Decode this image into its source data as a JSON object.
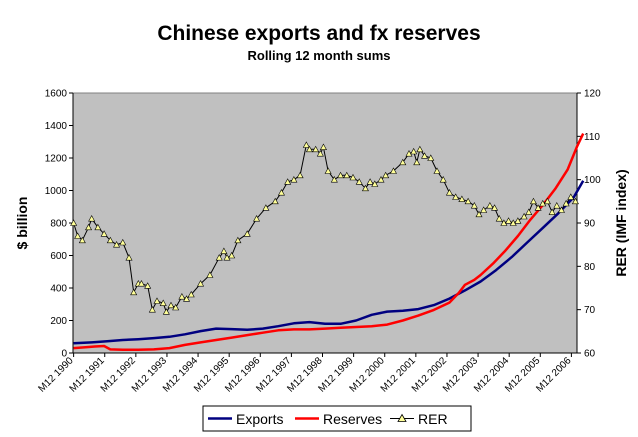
{
  "chart_data": {
    "type": "line",
    "title": "Chinese exports and fx reserves",
    "subtitle": "Rolling 12 month sums",
    "ylabel_left": "$ billion",
    "ylabel_right": "RER (IMF index)",
    "ylim_left": [
      0,
      1600
    ],
    "ylim_right": [
      60,
      120
    ],
    "yticks_left": [
      "0",
      "200",
      "400",
      "600",
      "800",
      "1000",
      "1200",
      "1400",
      "1600"
    ],
    "yticks_right": [
      "60",
      "70",
      "80",
      "90",
      "100",
      "110",
      "120"
    ],
    "xlim": [
      1990.9,
      2007.1
    ],
    "xticks": [
      {
        "label": "M12 1990",
        "x": 1990.92
      },
      {
        "label": "M12 1991",
        "x": 1991.92
      },
      {
        "label": "M12 1992",
        "x": 1992.92
      },
      {
        "label": "M12 1993",
        "x": 1993.92
      },
      {
        "label": "M12 1994",
        "x": 1994.92
      },
      {
        "label": "M12 1995",
        "x": 1995.92
      },
      {
        "label": "M12 1996",
        "x": 1996.92
      },
      {
        "label": "M12 1997",
        "x": 1997.92
      },
      {
        "label": "M12 1998",
        "x": 1998.92
      },
      {
        "label": "M12 1999",
        "x": 1999.92
      },
      {
        "label": "M12 2000",
        "x": 2000.92
      },
      {
        "label": "M12 2001",
        "x": 2001.92
      },
      {
        "label": "M12 2002",
        "x": 2002.92
      },
      {
        "label": "M12 2003",
        "x": 2003.92
      },
      {
        "label": "M12 2004",
        "x": 2004.92
      },
      {
        "label": "M12 2005",
        "x": 2005.92
      },
      {
        "label": "M12 2006",
        "x": 2006.92
      }
    ],
    "grid": false,
    "background": "#c0c0c0",
    "legend_position": "bottom",
    "series": [
      {
        "name": "Exports",
        "axis": "left",
        "color": "#000080",
        "marker": false,
        "points": [
          [
            1990.92,
            60
          ],
          [
            1991.5,
            65
          ],
          [
            1992.0,
            72
          ],
          [
            1992.5,
            80
          ],
          [
            1993.0,
            85
          ],
          [
            1993.5,
            92
          ],
          [
            1994.0,
            100
          ],
          [
            1994.5,
            115
          ],
          [
            1995.0,
            135
          ],
          [
            1995.5,
            150
          ],
          [
            1996.0,
            147
          ],
          [
            1996.5,
            143
          ],
          [
            1997.0,
            150
          ],
          [
            1997.5,
            165
          ],
          [
            1998.0,
            183
          ],
          [
            1998.5,
            190
          ],
          [
            1999.0,
            180
          ],
          [
            1999.5,
            180
          ],
          [
            2000.0,
            200
          ],
          [
            2000.5,
            235
          ],
          [
            2001.0,
            255
          ],
          [
            2001.5,
            260
          ],
          [
            2002.0,
            270
          ],
          [
            2002.5,
            295
          ],
          [
            2003.0,
            335
          ],
          [
            2003.5,
            385
          ],
          [
            2004.0,
            440
          ],
          [
            2004.5,
            510
          ],
          [
            2005.0,
            590
          ],
          [
            2005.5,
            680
          ],
          [
            2006.0,
            770
          ],
          [
            2006.5,
            860
          ],
          [
            2007.0,
            960
          ],
          [
            2007.3,
            1060
          ]
        ]
      },
      {
        "name": "Reserves",
        "axis": "left",
        "color": "#ff0000",
        "marker": false,
        "points": [
          [
            1990.92,
            30
          ],
          [
            1991.3,
            35
          ],
          [
            1991.6,
            40
          ],
          [
            1991.9,
            43
          ],
          [
            1992.1,
            22
          ],
          [
            1992.5,
            20
          ],
          [
            1993.0,
            20
          ],
          [
            1993.5,
            22
          ],
          [
            1994.0,
            30
          ],
          [
            1994.5,
            50
          ],
          [
            1995.0,
            65
          ],
          [
            1995.5,
            80
          ],
          [
            1996.0,
            95
          ],
          [
            1996.5,
            110
          ],
          [
            1997.0,
            125
          ],
          [
            1997.5,
            140
          ],
          [
            1998.0,
            145
          ],
          [
            1998.5,
            145
          ],
          [
            1999.0,
            150
          ],
          [
            1999.5,
            155
          ],
          [
            2000.0,
            160
          ],
          [
            2000.5,
            165
          ],
          [
            2001.0,
            175
          ],
          [
            2001.5,
            200
          ],
          [
            2002.0,
            230
          ],
          [
            2002.5,
            265
          ],
          [
            2003.0,
            310
          ],
          [
            2003.3,
            370
          ],
          [
            2003.5,
            420
          ],
          [
            2003.8,
            450
          ],
          [
            2004.0,
            480
          ],
          [
            2004.4,
            550
          ],
          [
            2004.8,
            630
          ],
          [
            2005.2,
            720
          ],
          [
            2005.6,
            820
          ],
          [
            2006.0,
            910
          ],
          [
            2006.4,
            1010
          ],
          [
            2006.8,
            1130
          ],
          [
            2007.1,
            1270
          ],
          [
            2007.3,
            1350
          ]
        ]
      },
      {
        "name": "RER",
        "axis": "right",
        "color": "#000000",
        "marker": true,
        "marker_fill": "#ffff99",
        "points": [
          [
            1990.92,
            90
          ],
          [
            1991.05,
            87
          ],
          [
            1991.2,
            86
          ],
          [
            1991.4,
            89
          ],
          [
            1991.5,
            91
          ],
          [
            1991.7,
            89
          ],
          [
            1991.9,
            87.5
          ],
          [
            1992.1,
            86
          ],
          [
            1992.3,
            85
          ],
          [
            1992.5,
            85.5
          ],
          [
            1992.7,
            82
          ],
          [
            1992.85,
            74
          ],
          [
            1993.0,
            76
          ],
          [
            1993.1,
            76
          ],
          [
            1993.3,
            75.5
          ],
          [
            1993.45,
            70
          ],
          [
            1993.6,
            72
          ],
          [
            1993.8,
            71.5
          ],
          [
            1993.9,
            69.5
          ],
          [
            1994.05,
            71
          ],
          [
            1994.2,
            70.5
          ],
          [
            1994.4,
            73
          ],
          [
            1994.55,
            72.5
          ],
          [
            1994.7,
            73.5
          ],
          [
            1995.0,
            76
          ],
          [
            1995.3,
            78
          ],
          [
            1995.6,
            82
          ],
          [
            1995.75,
            83.5
          ],
          [
            1995.85,
            82
          ],
          [
            1996.0,
            82.5
          ],
          [
            1996.2,
            86
          ],
          [
            1996.5,
            87.5
          ],
          [
            1996.8,
            91
          ],
          [
            1997.1,
            93.5
          ],
          [
            1997.4,
            95
          ],
          [
            1997.6,
            97
          ],
          [
            1997.8,
            99.5
          ],
          [
            1998.0,
            100
          ],
          [
            1998.2,
            101
          ],
          [
            1998.4,
            108
          ],
          [
            1998.5,
            107
          ],
          [
            1998.7,
            107
          ],
          [
            1998.85,
            106
          ],
          [
            1998.95,
            107.5
          ],
          [
            1999.1,
            102
          ],
          [
            1999.3,
            100
          ],
          [
            1999.5,
            101
          ],
          [
            1999.7,
            101
          ],
          [
            1999.9,
            100.5
          ],
          [
            2000.1,
            99.5
          ],
          [
            2000.3,
            98
          ],
          [
            2000.45,
            99.5
          ],
          [
            2000.6,
            99
          ],
          [
            2000.8,
            100
          ],
          [
            2000.95,
            101
          ],
          [
            2001.2,
            102
          ],
          [
            2001.5,
            104
          ],
          [
            2001.7,
            106
          ],
          [
            2001.85,
            106.5
          ],
          [
            2001.95,
            104
          ],
          [
            2002.05,
            107
          ],
          [
            2002.2,
            105.5
          ],
          [
            2002.4,
            105
          ],
          [
            2002.6,
            102
          ],
          [
            2002.8,
            100
          ],
          [
            2003.0,
            97
          ],
          [
            2003.2,
            96
          ],
          [
            2003.4,
            95.5
          ],
          [
            2003.6,
            95
          ],
          [
            2003.8,
            94
          ],
          [
            2003.95,
            92
          ],
          [
            2004.1,
            93
          ],
          [
            2004.3,
            94
          ],
          [
            2004.45,
            93.5
          ],
          [
            2004.6,
            91
          ],
          [
            2004.75,
            90
          ],
          [
            2004.9,
            90.5
          ],
          [
            2005.05,
            90
          ],
          [
            2005.2,
            90.5
          ],
          [
            2005.4,
            91.5
          ],
          [
            2005.55,
            92.5
          ],
          [
            2005.7,
            95
          ],
          [
            2005.85,
            93.5
          ],
          [
            2006.0,
            94.5
          ],
          [
            2006.15,
            95
          ],
          [
            2006.3,
            92.5
          ],
          [
            2006.45,
            94
          ],
          [
            2006.6,
            93
          ],
          [
            2006.75,
            94.5
          ],
          [
            2006.9,
            96
          ],
          [
            2007.05,
            95
          ]
        ]
      }
    ]
  }
}
